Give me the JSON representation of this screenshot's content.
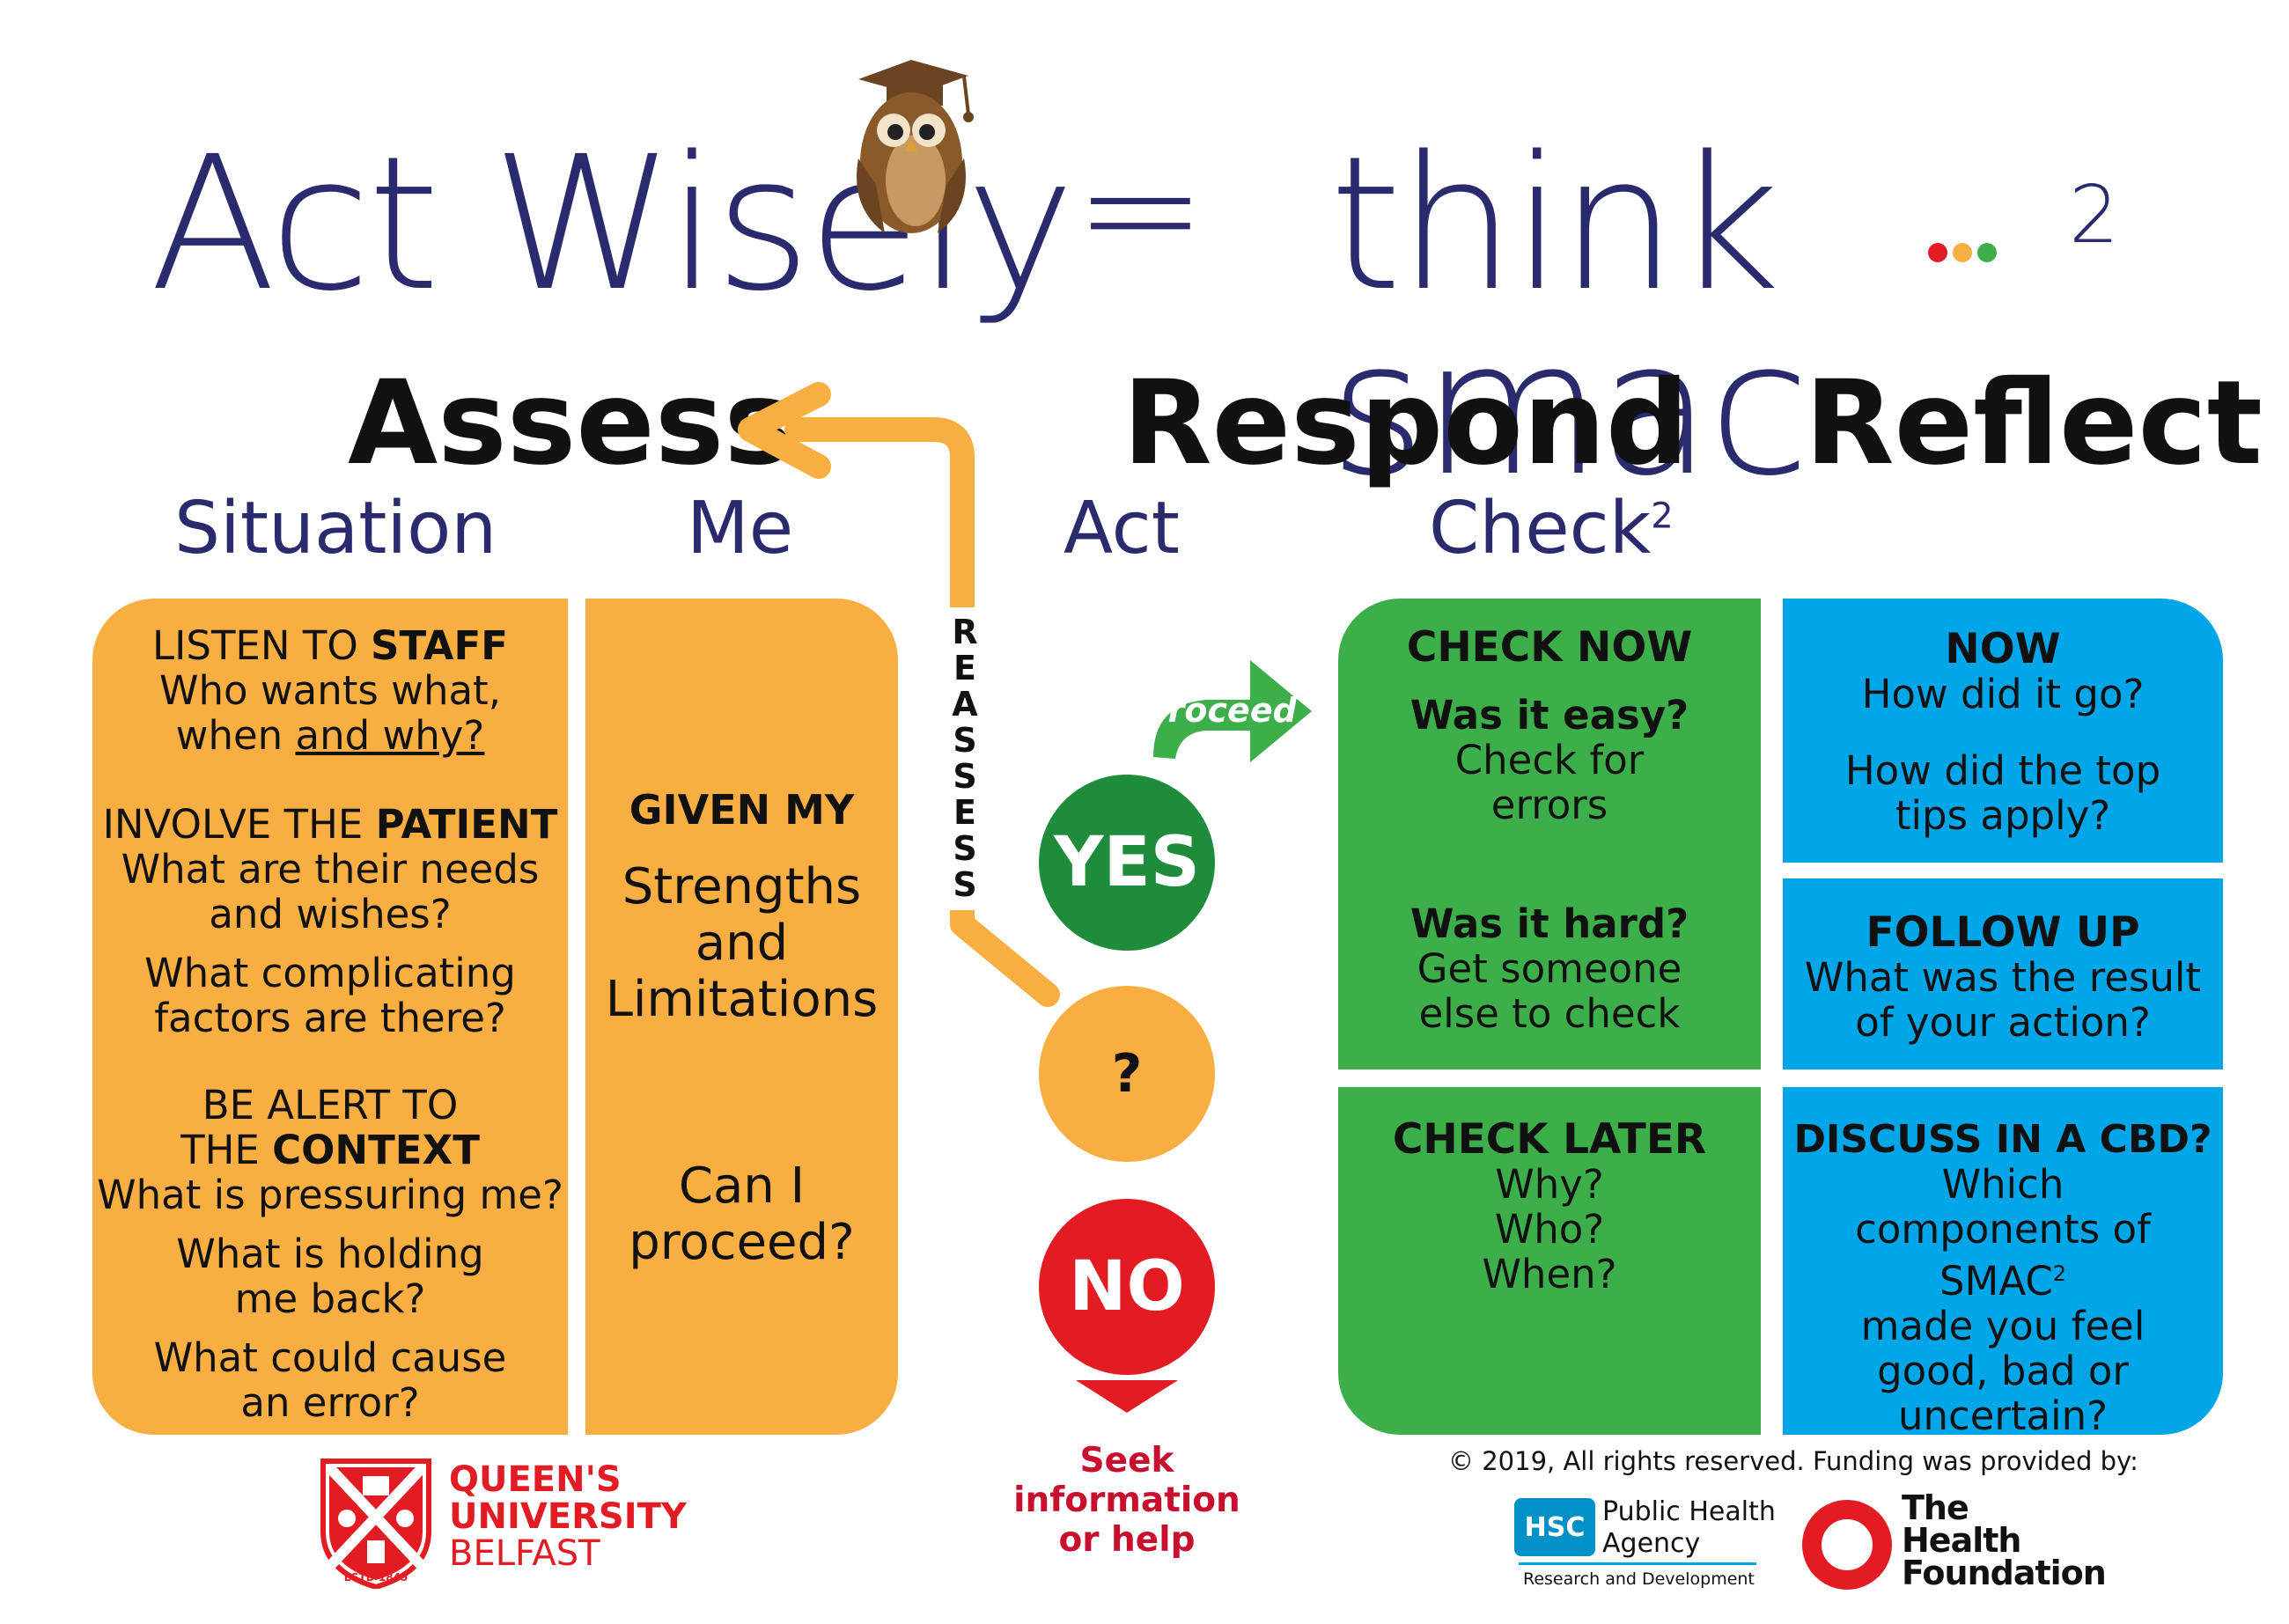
{
  "header": {
    "left_title": "Act Wisely",
    "equals": "=",
    "right_title": "think smac",
    "superscript": "2"
  },
  "stages": {
    "assess": "Assess",
    "respond": "Respond",
    "reflect": "Reflect"
  },
  "subheads": {
    "situation": "Situation",
    "me": "Me",
    "act": "Act",
    "check": "Check",
    "check_sup": "2"
  },
  "situation": {
    "s1_a": "LISTEN TO ",
    "s1_b": "STAFF",
    "s1_l2": "Who wants what,",
    "s1_l3a": "when ",
    "s1_l3b": "and why?",
    "s2_a": "INVOLVE THE ",
    "s2_b": "PATIENT",
    "s2_l2": "What are their needs",
    "s2_l3": "and wishes?",
    "s2_l4": "What complicating",
    "s2_l5": "factors are there?",
    "s3_l1": "BE ALERT TO",
    "s3_l2a": "THE ",
    "s3_l2b": "CONTEXT",
    "s3_l3": "What is pressuring me?",
    "s3_l4": "What is holding",
    "s3_l5": "me back?",
    "s3_l6": "What could cause",
    "s3_l7": "an error?"
  },
  "me": {
    "given": "GIVEN MY",
    "l1": "Strengths",
    "l2": "and",
    "l3": "Limitations",
    "q1": "Can I",
    "q2": "proceed?"
  },
  "act": {
    "reassess": [
      "R",
      "E",
      "A",
      "S",
      "S",
      "E",
      "S",
      "S"
    ],
    "proceed": "Proceed",
    "yes": "YES",
    "maybe": "?",
    "no": "NO",
    "seek1": "Seek",
    "seek2": "information",
    "seek3": "or help"
  },
  "check_now": {
    "title": "CHECK NOW",
    "easy": "Was it easy?",
    "easy_1": "Check for",
    "easy_2": "errors",
    "hard": "Was it hard?",
    "hard_1": "Get someone",
    "hard_2": "else to check"
  },
  "check_later": {
    "title": "CHECK LATER",
    "l1": "Why?",
    "l2": "Who?",
    "l3": "When?"
  },
  "reflect_now": {
    "title": "NOW",
    "l1": "How did it go?",
    "l2": "How did the top",
    "l3": "tips apply?"
  },
  "follow_up": {
    "title": "FOLLOW UP",
    "l1": "What was the result",
    "l2": "of your action?"
  },
  "discuss": {
    "title": "DISCUSS IN A CBD?",
    "l1": "Which",
    "l2": "components of",
    "l3": "SMAC",
    "l3_sup": "2",
    "l4": "made you feel",
    "l5": "good, bad or",
    "l6": "uncertain?"
  },
  "footer": {
    "copyright": "© 2019, All rights reserved. Funding was provided by:",
    "qub_1": "QUEEN'S",
    "qub_2": "UNIVERSITY",
    "qub_3": "BELFAST",
    "qub_estd": "ESTD 1845",
    "hsc_badge": "HSC",
    "hsc_1": "Public Health",
    "hsc_2": "Agency",
    "hsc_3": "Research and Development",
    "thf_1": "The",
    "thf_2": "Health",
    "thf_3": "Foundation"
  },
  "colors": {
    "orange": "#F9AE41",
    "green": "#3DAF4A",
    "dark_green": "#1E8C3A",
    "blue": "#00A6E8",
    "red": "#E31B23",
    "navy": "#2A2A6E",
    "owl_brown": "#8B5A2B"
  }
}
